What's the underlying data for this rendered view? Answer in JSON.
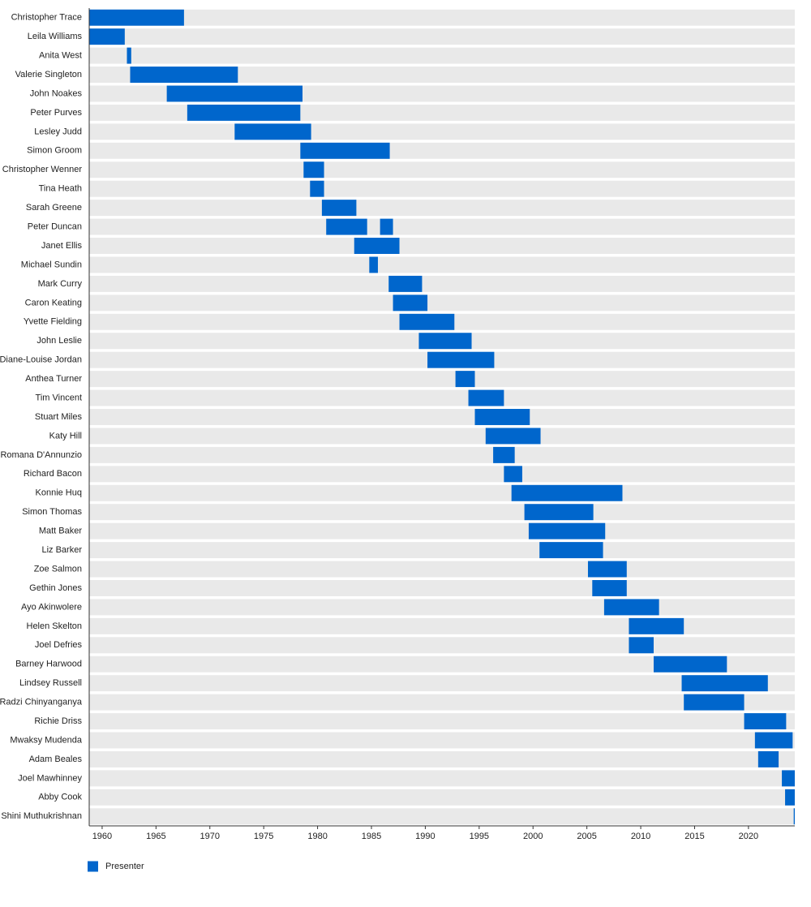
{
  "chart_data": {
    "type": "timeline",
    "categories": [
      "Christopher Trace",
      "Leila Williams",
      "Anita West",
      "Valerie Singleton",
      "John Noakes",
      "Peter Purves",
      "Lesley Judd",
      "Simon Groom",
      "Christopher Wenner",
      "Tina Heath",
      "Sarah Greene",
      "Peter Duncan",
      "Janet Ellis",
      "Michael Sundin",
      "Mark Curry",
      "Caron Keating",
      "Yvette Fielding",
      "John Leslie",
      "Diane-Louise Jordan",
      "Anthea Turner",
      "Tim Vincent",
      "Stuart Miles",
      "Katy Hill",
      "Romana D'Annunzio",
      "Richard Bacon",
      "Konnie Huq",
      "Simon Thomas",
      "Matt Baker",
      "Liz Barker",
      "Zoe Salmon",
      "Gethin Jones",
      "Ayo Akinwolere",
      "Helen Skelton",
      "Joel Defries",
      "Barney Harwood",
      "Lindsey Russell",
      "Radzi Chinyanganya",
      "Richie Driss",
      "Mwaksy Mudenda",
      "Adam Beales",
      "Joel Mawhinney",
      "Abby Cook",
      "Shini Muthukrishnan"
    ],
    "series": [
      {
        "name": "Presenter",
        "color": "#0066cc",
        "values": [
          [
            [
              1958.8,
              1967.6
            ]
          ],
          [
            [
              1958.8,
              1962.1
            ]
          ],
          [
            [
              1962.3,
              1962.7
            ]
          ],
          [
            [
              1962.6,
              1972.6
            ]
          ],
          [
            [
              1966.0,
              1978.6
            ]
          ],
          [
            [
              1967.9,
              1978.4
            ]
          ],
          [
            [
              1972.3,
              1979.4
            ]
          ],
          [
            [
              1978.4,
              1986.7
            ]
          ],
          [
            [
              1978.7,
              1980.6
            ]
          ],
          [
            [
              1979.3,
              1980.6
            ]
          ],
          [
            [
              1980.4,
              1983.6
            ]
          ],
          [
            [
              1980.8,
              1984.6
            ],
            [
              1985.8,
              1987.0
            ]
          ],
          [
            [
              1983.4,
              1987.6
            ]
          ],
          [
            [
              1984.8,
              1985.6
            ]
          ],
          [
            [
              1986.6,
              1989.7
            ]
          ],
          [
            [
              1987.0,
              1990.2
            ]
          ],
          [
            [
              1987.6,
              1992.7
            ]
          ],
          [
            [
              1989.4,
              1994.3
            ]
          ],
          [
            [
              1990.2,
              1996.4
            ]
          ],
          [
            [
              1992.8,
              1994.6
            ]
          ],
          [
            [
              1994.0,
              1997.3
            ]
          ],
          [
            [
              1994.6,
              1999.7
            ]
          ],
          [
            [
              1995.6,
              2000.7
            ]
          ],
          [
            [
              1996.3,
              1998.3
            ]
          ],
          [
            [
              1997.3,
              1999.0
            ]
          ],
          [
            [
              1998.0,
              2008.3
            ]
          ],
          [
            [
              1999.2,
              2005.6
            ]
          ],
          [
            [
              1999.6,
              2006.7
            ]
          ],
          [
            [
              2000.6,
              2006.5
            ]
          ],
          [
            [
              2005.1,
              2008.7
            ]
          ],
          [
            [
              2005.5,
              2008.7
            ]
          ],
          [
            [
              2006.6,
              2011.7
            ]
          ],
          [
            [
              2008.9,
              2014.0
            ]
          ],
          [
            [
              2008.9,
              2011.2
            ]
          ],
          [
            [
              2011.2,
              2018.0
            ]
          ],
          [
            [
              2013.8,
              2021.8
            ]
          ],
          [
            [
              2014.0,
              2019.6
            ]
          ],
          [
            [
              2019.6,
              2023.5
            ]
          ],
          [
            [
              2020.6,
              2024.1
            ]
          ],
          [
            [
              2020.9,
              2022.8
            ]
          ],
          [
            [
              2023.1,
              2024.3
            ]
          ],
          [
            [
              2023.4,
              2024.3
            ]
          ],
          [
            [
              2024.2,
              2024.3
            ]
          ]
        ]
      }
    ],
    "xlim": [
      1958.8,
      2024.3
    ],
    "xticks": [
      1960,
      1965,
      1970,
      1975,
      1980,
      1985,
      1990,
      1995,
      2000,
      2005,
      2010,
      2015,
      2020
    ],
    "legend": "bottom-left"
  }
}
